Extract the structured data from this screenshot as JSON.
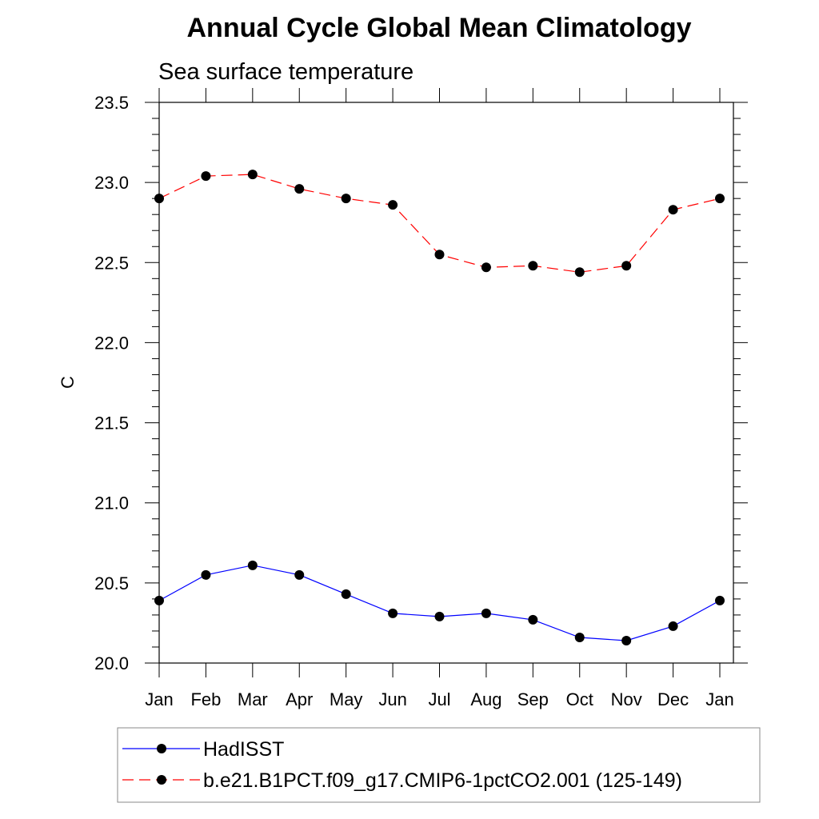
{
  "chart_data": {
    "type": "line",
    "title": "Annual Cycle Global Mean Climatology",
    "subtitle": "Sea surface temperature",
    "ylabel": "C",
    "xlabel": "",
    "categories": [
      "Jan",
      "Feb",
      "Mar",
      "Apr",
      "May",
      "Jun",
      "Jul",
      "Aug",
      "Sep",
      "Oct",
      "Nov",
      "Dec",
      "Jan"
    ],
    "ylim": [
      20.0,
      23.5
    ],
    "yticks": [
      "20.0",
      "20.5",
      "21.0",
      "21.5",
      "22.0",
      "22.5",
      "23.0",
      "23.5"
    ],
    "grid": false,
    "legend_position": "bottom",
    "series": [
      {
        "name": "HadISST",
        "color": "#0000ff",
        "style": "solid",
        "marker": "circle",
        "values": [
          20.39,
          20.55,
          20.61,
          20.55,
          20.43,
          20.31,
          20.29,
          20.31,
          20.27,
          20.16,
          20.14,
          20.23,
          20.39
        ]
      },
      {
        "name": "b.e21.B1PCT.f09_g17.CMIP6-1pctCO2.001 (125-149)",
        "color": "#ff0000",
        "style": "dashed",
        "marker": "circle",
        "values": [
          22.9,
          23.04,
          23.05,
          22.96,
          22.9,
          22.86,
          22.55,
          22.47,
          22.48,
          22.44,
          22.48,
          22.83,
          22.9
        ]
      }
    ]
  }
}
